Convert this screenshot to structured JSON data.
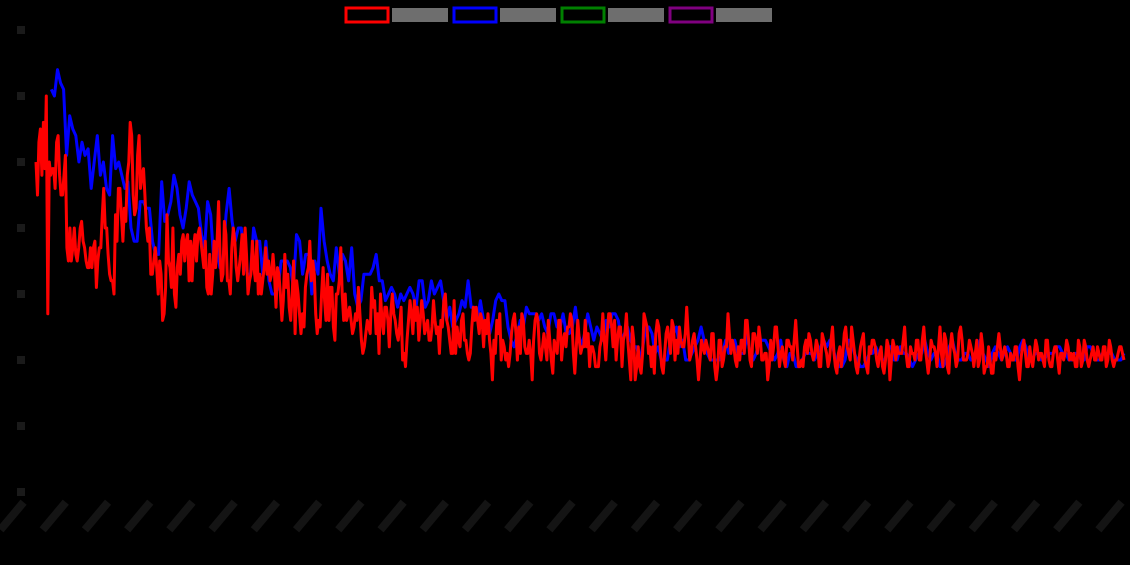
{
  "chart_data": {
    "type": "line",
    "title": "",
    "xlabel": "",
    "ylabel": "",
    "ylim": [
      0,
      7
    ],
    "x_tick_count": 27,
    "y_tick_count": 8,
    "legend_position": "top-center",
    "grid": false,
    "background": "#000000",
    "series": [
      {
        "color": "#ff0000",
        "values": [
          5.0,
          4.5,
          5.3,
          5.5,
          4.8,
          5.6,
          4.9,
          6.0,
          2.7,
          5.0,
          4.8,
          4.9,
          4.9,
          4.6,
          5.3,
          5.4,
          4.8,
          4.5,
          4.5,
          4.8,
          5.1,
          3.7,
          3.5,
          4.0,
          3.5,
          3.7,
          4.0,
          3.6,
          3.5,
          3.7,
          4.0,
          4.1,
          3.8,
          3.7,
          3.5,
          3.4,
          3.4,
          3.7,
          3.4,
          3.7,
          3.8,
          3.1,
          3.5,
          3.7,
          3.7,
          4.2,
          4.6,
          4.0,
          4.0,
          3.6,
          3.3,
          3.2,
          3.2,
          3.0,
          4.2,
          3.8,
          4.6,
          4.6,
          4.2,
          3.8,
          4.3,
          4.1,
          4.8,
          5.0,
          5.6,
          5.4,
          4.5,
          4.2,
          4.3,
          5.1,
          5.4,
          4.6,
          4.8,
          4.9,
          4.5,
          4.0,
          3.8,
          4.0,
          3.3,
          3.3,
          3.5,
          3.7,
          3.4,
          3.0,
          3.5,
          3.3,
          2.6,
          2.7,
          3.1,
          4.2,
          3.5,
          3.4,
          3.1,
          4.0,
          3.0,
          2.8,
          3.4,
          3.6,
          3.3,
          3.8,
          3.9,
          3.5,
          3.8,
          3.9,
          3.2,
          3.8,
          3.2,
          3.7,
          3.9,
          3.5,
          3.9,
          4.0,
          3.8,
          3.6,
          3.4,
          3.8,
          3.1,
          3.0,
          3.6,
          3.0,
          3.3,
          3.8,
          3.4,
          3.8,
          4.4,
          3.6,
          3.2,
          3.3,
          4.1,
          3.9,
          3.2,
          3.2,
          3.0,
          3.7,
          4.0,
          3.8,
          3.4,
          3.2,
          3.4,
          3.6,
          3.9,
          3.3,
          4.0,
          3.6,
          3.0,
          3.2,
          3.3,
          3.8,
          3.4,
          3.2,
          3.8,
          3.0,
          3.3,
          3.0,
          3.2,
          3.4,
          3.7,
          3.3,
          3.5,
          3.2,
          3.3,
          3.6,
          3.3,
          2.8,
          3.4,
          3.3,
          3.0,
          2.6,
          2.9,
          3.6,
          3.1,
          3.3,
          2.8,
          2.6,
          3.0,
          3.5,
          2.4,
          3.2,
          3.0,
          2.7,
          2.4,
          2.7,
          2.5,
          3.1,
          3.3,
          3.4,
          3.8,
          3.2,
          3.5,
          3.3,
          2.7,
          2.4,
          2.6,
          2.5,
          3.0,
          3.4,
          2.9,
          2.6,
          3.3,
          2.6,
          3.1,
          3.1,
          2.5,
          2.3,
          3.0,
          3.0,
          3.2,
          3.7,
          3.0,
          2.6,
          3.0,
          2.6,
          2.7,
          2.8,
          2.6,
          2.4,
          2.5,
          2.7,
          2.6,
          3.1,
          2.7,
          2.3,
          2.1,
          2.2,
          2.4,
          2.6,
          2.5,
          2.4,
          3.1,
          2.8,
          2.9,
          2.4,
          2.7,
          2.1,
          3.0,
          2.6,
          2.4,
          2.8,
          2.8,
          2.6,
          2.2,
          2.7,
          3.0,
          2.7,
          2.6,
          2.4,
          2.3,
          2.5,
          2.8,
          2.0,
          2.1,
          1.9,
          2.3,
          2.6,
          2.9,
          2.7,
          2.4,
          2.9,
          2.6,
          2.8,
          2.3,
          2.6,
          2.9,
          2.7,
          2.4,
          2.5,
          2.6,
          2.3,
          2.3,
          2.5,
          2.9,
          2.6,
          2.4,
          2.5,
          2.1,
          2.6,
          2.5,
          2.9,
          3.0,
          2.6,
          2.5,
          2.3,
          2.1,
          2.1,
          2.9,
          2.1,
          2.5,
          2.3,
          2.2,
          2.6,
          2.7,
          2.3,
          2.3,
          2.1,
          2.0,
          2.1,
          2.5,
          2.8,
          2.6,
          2.8,
          2.6,
          2.4,
          2.7,
          2.6,
          2.2,
          2.6,
          2.4,
          2.7,
          2.3,
          2.1,
          1.7,
          2.3,
          2.1,
          2.6,
          2.4,
          2.7,
          2.0,
          2.3,
          2.2,
          2.0,
          2.1,
          1.9,
          2.1,
          2.4,
          2.6,
          2.7,
          2.4,
          2.0,
          2.5,
          2.1,
          2.7,
          2.6,
          2.2,
          2.1,
          2.1,
          2.3,
          2.1,
          1.7,
          2.3,
          2.6,
          2.7,
          2.6,
          2.1,
          2.0,
          2.2,
          2.4,
          2.2,
          2.0,
          2.6,
          2.3,
          2.0,
          1.8,
          2.3,
          2.2,
          2.1,
          2.6,
          2.6,
          2.0,
          2.3,
          2.4,
          2.2,
          2.5,
          2.5,
          2.7,
          2.6,
          2.1,
          1.8,
          2.2,
          2.6,
          2.3,
          2.1,
          2.2,
          2.2,
          2.6,
          2.2,
          2.4,
          1.9,
          2.2,
          2.2,
          2.1,
          1.9,
          1.9,
          1.9,
          2.2,
          2.3,
          2.7,
          2.3,
          2.0,
          2.4,
          2.7,
          2.7,
          2.5,
          2.2,
          2.6,
          2.0,
          2.3,
          2.5,
          2.5,
          1.9,
          2.3,
          2.4,
          2.7,
          2.3,
          2.0,
          1.7,
          2.5,
          2.3,
          1.7,
          1.9,
          2.2,
          1.9,
          1.8,
          2.1,
          2.7,
          2.6,
          2.5,
          2.1,
          2.2,
          1.9,
          2.2,
          1.8,
          2.4,
          2.6,
          2.5,
          2.2,
          1.9,
          1.8,
          2.1,
          2.4,
          2.5,
          2.3,
          2.1,
          2.6,
          2.5,
          2.0,
          2.3,
          2.1,
          2.5,
          2.3,
          2.2,
          2.2,
          2.4,
          2.8,
          2.4,
          2.0,
          2.1,
          2.3,
          2.4,
          2.2,
          2.0,
          1.7,
          2.0,
          2.3,
          2.2,
          2.1,
          2.3,
          2.2,
          2.1,
          2.0,
          2.4,
          2.4,
          1.9,
          1.7,
          1.9,
          2.3,
          2.3,
          1.9,
          2.0,
          2.2,
          2.2,
          2.7,
          2.4,
          2.1,
          2.3,
          2.2,
          2.0,
          1.9,
          2.2,
          2.0,
          2.3,
          2.3,
          2.1,
          2.6,
          2.6,
          2.3,
          2.0,
          1.9,
          2.4,
          2.4,
          2.3,
          2.1,
          2.5,
          2.3,
          2.0,
          2.0,
          2.1,
          2.1,
          1.7,
          1.9,
          2.3,
          2.0,
          2.2,
          2.5,
          2.5,
          2.2,
          1.9,
          2.1,
          2.2,
          2.0,
          1.9,
          2.3,
          2.3,
          2.2,
          2.2,
          2.0,
          2.3,
          2.6,
          2.2,
          1.9,
          1.9,
          2.0,
          1.9,
          2.2,
          2.3,
          2.1,
          2.4,
          2.3,
          2.1,
          2.0,
          2.1,
          2.3,
          2.2,
          1.9,
          1.9,
          2.4,
          2.3,
          2.2,
          2.1,
          1.9,
          2.0,
          2.3,
          2.5,
          2.1,
          1.9,
          1.8,
          2.1,
          2.2,
          1.9,
          2.1,
          2.4,
          2.5,
          2.2,
          2.1,
          2.0,
          2.5,
          2.3,
          2.1,
          1.9,
          1.8,
          2.0,
          2.2,
          2.3,
          2.4,
          2.0,
          1.9,
          1.8,
          2.2,
          2.1,
          2.3,
          2.3,
          2.2,
          2.0,
          1.9,
          2.1,
          2.2,
          1.9,
          1.8,
          2.0,
          2.3,
          2.2,
          1.7,
          2.0,
          2.3,
          2.2,
          2.0,
          2.2,
          2.1,
          2.1,
          2.1,
          2.3,
          2.5,
          2.1,
          1.9,
          1.9,
          2.2,
          2.1,
          2.1,
          2.0,
          2.3,
          2.3,
          2.0,
          2.0,
          2.3,
          2.5,
          2.2,
          2.0,
          1.8,
          2.0,
          2.3,
          2.2,
          2.2,
          2.1,
          1.9,
          2.2,
          2.5,
          2.1,
          1.9,
          2.4,
          2.3,
          1.9,
          1.8,
          2.2,
          2.4,
          2.2,
          2.1,
          1.9,
          2.0,
          2.4,
          2.5,
          2.3,
          2.0,
          2.0,
          2.0,
          2.1,
          2.3,
          2.2,
          2.1,
          1.9,
          2.1,
          2.3,
          1.9,
          2.0,
          2.4,
          2.2,
          1.8,
          1.9,
          1.9,
          2.2,
          2.0,
          1.8,
          1.8,
          2.1,
          2.0,
          2.2,
          2.4,
          2.2,
          2.0,
          2.1,
          2.2,
          2.1,
          1.9,
          1.9,
          2.1,
          2.0,
          2.0,
          2.2,
          2.2,
          1.9,
          1.7,
          2.0,
          2.2,
          2.3,
          2.1,
          1.9,
          1.9,
          2.2,
          2.0,
          1.9,
          2.1,
          2.3,
          2.2,
          2.0,
          2.1,
          2.1,
          2.0,
          1.9,
          2.3,
          2.3,
          2.0,
          1.9,
          1.9,
          2.1,
          2.2,
          2.2,
          2.0,
          1.8,
          2.1,
          2.1,
          2.0,
          2.1,
          2.3,
          2.2,
          2.0,
          2.1,
          2.0,
          2.1,
          1.9,
          1.9,
          2.3,
          2.2,
          1.9,
          2.0,
          2.3,
          2.2,
          2.0,
          1.9,
          2.0,
          2.1,
          2.2,
          2.0,
          2.0,
          2.2,
          2.1,
          2.0,
          2.0,
          2.2,
          2.2,
          1.9,
          2.0,
          2.3,
          2.2,
          2.0,
          1.9,
          2.0,
          2.0,
          2.1,
          2.2,
          2.2,
          2.1,
          2.0
        ]
      },
      {
        "color": "#0000ff",
        "values": [
          null,
          null,
          null,
          null,
          null,
          6.1,
          6.0,
          6.4,
          6.2,
          6.1,
          5.1,
          5.7,
          5.5,
          5.4,
          5.0,
          5.3,
          5.1,
          5.2,
          4.6,
          5.0,
          5.4,
          4.8,
          5.0,
          4.6,
          4.5,
          5.4,
          4.9,
          5.0,
          4.8,
          4.6,
          4.7,
          4.0,
          3.8,
          3.8,
          4.4,
          4.4,
          4.3,
          4.3,
          3.8,
          3.6,
          3.6,
          4.7,
          4.1,
          4.2,
          4.4,
          4.8,
          4.6,
          4.2,
          4.0,
          4.3,
          4.7,
          4.5,
          4.4,
          4.3,
          3.9,
          3.7,
          4.4,
          4.2,
          3.5,
          3.7,
          3.4,
          3.5,
          4.2,
          4.6,
          4.1,
          3.8,
          4.0,
          4.0,
          3.5,
          3.3,
          3.3,
          4.0,
          3.8,
          3.8,
          3.3,
          3.8,
          3.2,
          3.0,
          3.0,
          3.1,
          3.5,
          3.5,
          3.5,
          3.4,
          3.1,
          3.9,
          3.8,
          3.3,
          3.6,
          3.6,
          3.0,
          3.5,
          3.3,
          4.3,
          3.8,
          3.5,
          3.3,
          3.2,
          3.7,
          3.3,
          3.6,
          3.5,
          3.2,
          3.7,
          3.0,
          2.8,
          2.9,
          3.3,
          3.3,
          3.3,
          3.4,
          3.6,
          3.2,
          3.2,
          2.9,
          3.0,
          3.1,
          3.0,
          2.8,
          3.0,
          2.9,
          3.0,
          3.1,
          3.0,
          2.8,
          3.2,
          3.2,
          2.8,
          2.9,
          3.2,
          3.0,
          3.1,
          3.2,
          2.9,
          2.6,
          2.8,
          2.5,
          2.6,
          2.7,
          2.9,
          2.8,
          3.2,
          2.8,
          2.8,
          2.6,
          2.9,
          2.6,
          2.5,
          2.4,
          2.6,
          2.9,
          3.0,
          2.9,
          2.9,
          2.5,
          2.3,
          2.2,
          2.4,
          2.6,
          2.5,
          2.8,
          2.7,
          2.7,
          2.7,
          2.6,
          2.7,
          2.5,
          2.4,
          2.7,
          2.7,
          2.5,
          2.5,
          2.7,
          2.4,
          2.4,
          2.5,
          2.8,
          2.4,
          2.2,
          2.4,
          2.7,
          2.5,
          2.3,
          2.5,
          2.4,
          2.3,
          2.6,
          2.5,
          2.7,
          2.7,
          2.6,
          2.3,
          2.4,
          2.5,
          2.3,
          2.2,
          2.2,
          2.0,
          2.2,
          2.5,
          2.5,
          2.4,
          2.1,
          2.2,
          2.0,
          2.0,
          2.0,
          2.3,
          2.4,
          2.5,
          2.2,
          2.3,
          2.0,
          2.0,
          2.1,
          2.2,
          2.3,
          2.5,
          2.3,
          2.1,
          2.0,
          2.0,
          2.0,
          2.0,
          2.1,
          2.3,
          2.1,
          2.2,
          2.3,
          2.1,
          2.1,
          2.1,
          2.4,
          2.1,
          2.0,
          2.1,
          2.3,
          2.3,
          2.3,
          2.2,
          2.1,
          2.0,
          2.1,
          2.3,
          2.0,
          1.9,
          2.1,
          2.1,
          1.9,
          1.9,
          2.0,
          2.1,
          2.1,
          2.1,
          2.0,
          2.1,
          2.2,
          2.3,
          2.2,
          2.3,
          2.2,
          2.0,
          1.9,
          1.9,
          2.0,
          2.3,
          2.3,
          2.1,
          2.0,
          1.9,
          1.9,
          2.0,
          2.1,
          2.1,
          2.2,
          2.1,
          2.0,
          2.0,
          2.2,
          2.2,
          2.0,
          2.0,
          2.2,
          2.1,
          2.1,
          2.0,
          1.9,
          2.0,
          2.1,
          2.1,
          2.3,
          2.1,
          2.0,
          2.1,
          2.1,
          1.9,
          1.9,
          2.0,
          2.2,
          2.3,
          2.1,
          2.0,
          2.0,
          2.1,
          2.1,
          2.0,
          2.0,
          2.1,
          2.3,
          2.1,
          2.0,
          1.9,
          2.1,
          2.2,
          2.1,
          2.0,
          2.1,
          2.2,
          2.1,
          2.0,
          2.0,
          2.2,
          2.3,
          2.2,
          2.0,
          2.0,
          2.1,
          2.1,
          2.0,
          2.0,
          2.1,
          2.1,
          2.1,
          2.2,
          2.2,
          2.1,
          2.1,
          2.0,
          2.0,
          2.1,
          2.1,
          2.0,
          2.0,
          2.2,
          2.2,
          2.1,
          2.0,
          2.0,
          2.1,
          2.1,
          2.1,
          2.1,
          2.0,
          2.0,
          2.0,
          2.1
        ]
      },
      {
        "color": "#008000",
        "values": []
      },
      {
        "color": "#800080",
        "values": []
      }
    ]
  }
}
